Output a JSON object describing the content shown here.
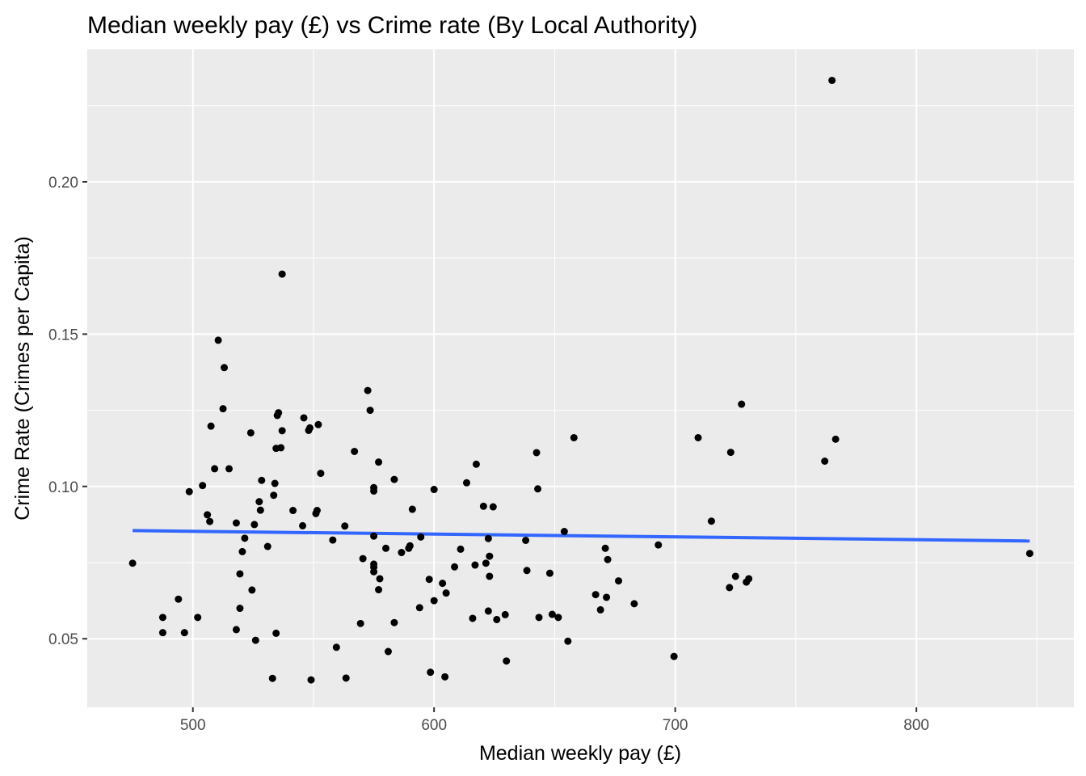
{
  "chart_data": {
    "type": "scatter",
    "title": "Median weekly pay (£) vs Crime rate (By Local Authority)",
    "xlabel": "Median weekly pay (£)",
    "ylabel": "Crime Rate (Crimes per Capita)",
    "xlim": [
      456.2,
      865.3
    ],
    "ylim": [
      0.0275,
      0.2435
    ],
    "x_ticks": [
      500,
      600,
      700,
      800
    ],
    "x_tick_labels": [
      "500",
      "600",
      "700",
      "800"
    ],
    "y_ticks": [
      0.05,
      0.1,
      0.15,
      0.2
    ],
    "y_tick_labels": [
      "0.05",
      "0.10",
      "0.15",
      "0.20"
    ],
    "grid": true,
    "background_color": "#ebebeb",
    "grid_color": "#ffffff",
    "point_color": "#000000",
    "trend_color": "#3366ff",
    "trend_line": {
      "type": "linear",
      "x": [
        475,
        847
      ],
      "y": [
        0.0855,
        0.0821
      ]
    },
    "points": [
      [
        475,
        0.0748
      ],
      [
        487.5,
        0.057
      ],
      [
        487.5,
        0.052
      ],
      [
        494,
        0.063
      ],
      [
        496.5,
        0.052
      ],
      [
        498.5,
        0.0983
      ],
      [
        502,
        0.057
      ],
      [
        504,
        0.1003
      ],
      [
        506,
        0.0907
      ],
      [
        507,
        0.0885
      ],
      [
        507.5,
        0.1198
      ],
      [
        509,
        0.1058
      ],
      [
        510.5,
        0.148
      ],
      [
        512.5,
        0.1255
      ],
      [
        513,
        0.139
      ],
      [
        515,
        0.1058
      ],
      [
        518,
        0.088
      ],
      [
        518,
        0.053
      ],
      [
        519.5,
        0.06
      ],
      [
        519.5,
        0.0713
      ],
      [
        520.5,
        0.0786
      ],
      [
        521.5,
        0.083
      ],
      [
        524,
        0.1176
      ],
      [
        524.5,
        0.066
      ],
      [
        525.5,
        0.0875
      ],
      [
        526,
        0.0495
      ],
      [
        527.5,
        0.095
      ],
      [
        528,
        0.0922
      ],
      [
        528.5,
        0.102
      ],
      [
        531,
        0.0803
      ],
      [
        533,
        0.037
      ],
      [
        533.5,
        0.0971
      ],
      [
        534,
        0.101
      ],
      [
        534.5,
        0.1125
      ],
      [
        534.5,
        0.0518
      ],
      [
        535,
        0.1233
      ],
      [
        535.5,
        0.1242
      ],
      [
        536.5,
        0.1127
      ],
      [
        537,
        0.1183
      ],
      [
        537,
        0.1697
      ],
      [
        541.5,
        0.0921
      ],
      [
        545.5,
        0.0871
      ],
      [
        546,
        0.1225
      ],
      [
        548,
        0.1184
      ],
      [
        548.5,
        0.1192
      ],
      [
        549,
        0.0365
      ],
      [
        551,
        0.0911
      ],
      [
        551.5,
        0.0921
      ],
      [
        552,
        0.1203
      ],
      [
        553,
        0.1043
      ],
      [
        558,
        0.0824
      ],
      [
        559.5,
        0.0472
      ],
      [
        563,
        0.087
      ],
      [
        563.5,
        0.0371
      ],
      [
        567,
        0.1115
      ],
      [
        569.5,
        0.055
      ],
      [
        570.5,
        0.0763
      ],
      [
        572.5,
        0.1315
      ],
      [
        573.5,
        0.125
      ],
      [
        575,
        0.0985
      ],
      [
        575,
        0.0996
      ],
      [
        575,
        0.0837
      ],
      [
        575,
        0.0745
      ],
      [
        575,
        0.0735
      ],
      [
        575,
        0.072
      ],
      [
        577,
        0.108
      ],
      [
        577,
        0.0661
      ],
      [
        577.5,
        0.0697
      ],
      [
        580,
        0.0797
      ],
      [
        581,
        0.0458
      ],
      [
        583.5,
        0.0553
      ],
      [
        583.5,
        0.1023
      ],
      [
        586.5,
        0.0783
      ],
      [
        589.5,
        0.0797
      ],
      [
        590,
        0.0805
      ],
      [
        591,
        0.0925
      ],
      [
        594,
        0.0602
      ],
      [
        594.5,
        0.0834
      ],
      [
        598,
        0.0695
      ],
      [
        598.5,
        0.039
      ],
      [
        600,
        0.0625
      ],
      [
        600,
        0.099
      ],
      [
        603.5,
        0.0682
      ],
      [
        604.5,
        0.0375
      ],
      [
        605,
        0.065
      ],
      [
        608.5,
        0.0736
      ],
      [
        611,
        0.0794
      ],
      [
        613.5,
        0.1012
      ],
      [
        616,
        0.0567
      ],
      [
        617,
        0.0742
      ],
      [
        617.5,
        0.1073
      ],
      [
        620.5,
        0.0935
      ],
      [
        621.5,
        0.0748
      ],
      [
        622.5,
        0.0829
      ],
      [
        622.5,
        0.0591
      ],
      [
        623,
        0.0771
      ],
      [
        623,
        0.0705
      ],
      [
        624.5,
        0.0933
      ],
      [
        626,
        0.0563
      ],
      [
        629.5,
        0.0579
      ],
      [
        630,
        0.0427
      ],
      [
        638,
        0.0823
      ],
      [
        638.5,
        0.0724
      ],
      [
        642.5,
        0.1111
      ],
      [
        643,
        0.0992
      ],
      [
        643.5,
        0.057
      ],
      [
        648,
        0.0715
      ],
      [
        649,
        0.058
      ],
      [
        651.5,
        0.057
      ],
      [
        654,
        0.0852
      ],
      [
        655.5,
        0.0492
      ],
      [
        658,
        0.116
      ],
      [
        667,
        0.0645
      ],
      [
        669,
        0.0595
      ],
      [
        671,
        0.0797
      ],
      [
        671.5,
        0.0636
      ],
      [
        672,
        0.076
      ],
      [
        676.5,
        0.069
      ],
      [
        683,
        0.0615
      ],
      [
        693,
        0.0808
      ],
      [
        699.5,
        0.0442
      ],
      [
        709.5,
        0.116
      ],
      [
        715,
        0.0886
      ],
      [
        722.5,
        0.0668
      ],
      [
        723,
        0.1112
      ],
      [
        725,
        0.0705
      ],
      [
        727.5,
        0.127
      ],
      [
        729.5,
        0.0686
      ],
      [
        730.5,
        0.0697
      ],
      [
        762,
        0.1083
      ],
      [
        765,
        0.2333
      ],
      [
        766.5,
        0.1155
      ],
      [
        847,
        0.078
      ]
    ]
  }
}
